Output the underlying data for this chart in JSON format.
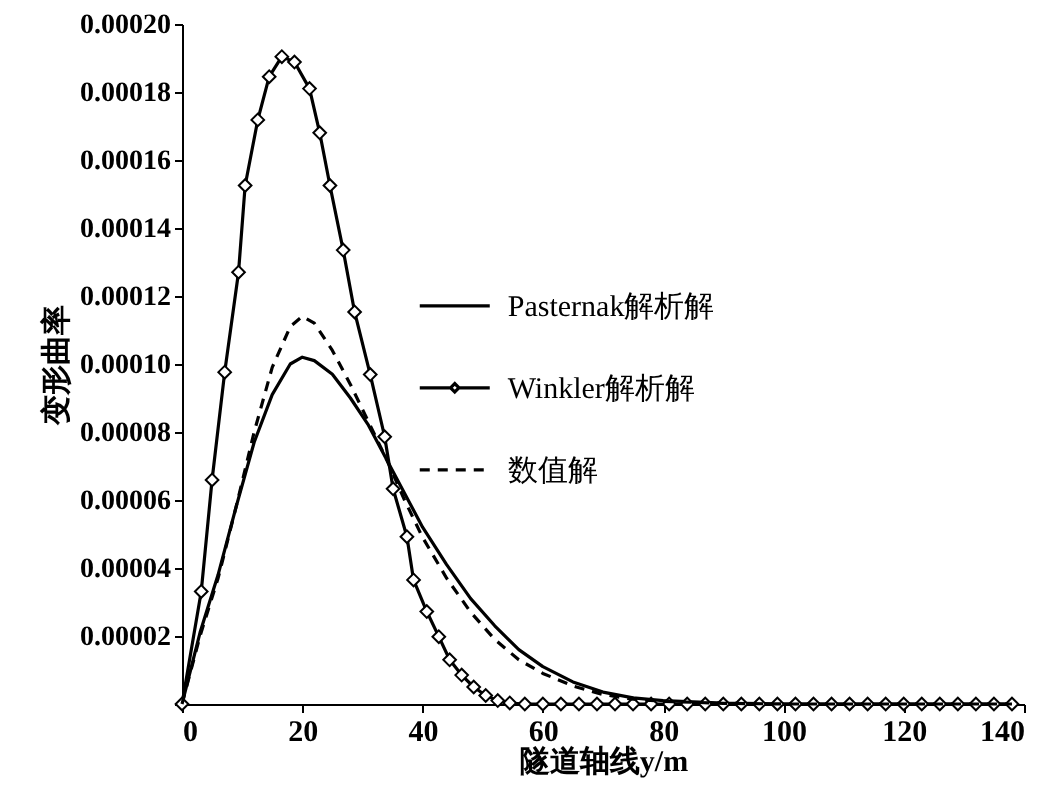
{
  "chart_data": {
    "type": "line",
    "xlabel": "隧道轴线y/m",
    "ylabel": "变形曲率",
    "xlim": [
      0,
      140
    ],
    "xticks": [
      0,
      20,
      40,
      60,
      80,
      100,
      120,
      140
    ],
    "ylim": [
      0,
      0.0002
    ],
    "yticks": [
      {
        "value": 0,
        "label": null
      },
      {
        "value": 2e-05,
        "label": "0.00002"
      },
      {
        "value": 4e-05,
        "label": "0.00004"
      },
      {
        "value": 6e-05,
        "label": "0.00006"
      },
      {
        "value": 8e-05,
        "label": "0.00008"
      },
      {
        "value": 0.0001,
        "label": "0.00010"
      },
      {
        "value": 0.00012,
        "label": "0.00012"
      },
      {
        "value": 0.00014,
        "label": "0.00014"
      },
      {
        "value": 0.00016,
        "label": "0.00016"
      },
      {
        "value": 0.00018,
        "label": "0.00018"
      },
      {
        "value": 0.0002,
        "label": "0.00020"
      }
    ],
    "grid": false,
    "legend": "right",
    "series": [
      {
        "name": "Pasternak解析解",
        "color": "#000000",
        "line_style": "solid",
        "marker": "none",
        "x": [
          0,
          3,
          6,
          9,
          12,
          15,
          18,
          20,
          22,
          25,
          28,
          31,
          34,
          37,
          40,
          44,
          48,
          52,
          56,
          60,
          65,
          70,
          75,
          80,
          90,
          100,
          120,
          138
        ],
        "values": [
          0,
          2.1e-05,
          3.8e-05,
          5.8e-05,
          7.7e-05,
          9.1e-05,
          0.0001,
          0.000102,
          0.000101,
          9.7e-05,
          9e-05,
          8.2e-05,
          7.2e-05,
          6.2e-05,
          5.2e-05,
          4.1e-05,
          3.1e-05,
          2.3e-05,
          1.6e-05,
          1.1e-05,
          6.5e-06,
          3.5e-06,
          1.8e-06,
          1e-06,
          3e-07,
          0,
          0,
          0
        ]
      },
      {
        "name": "Winkler解析解",
        "color": "#000000",
        "line_style": "solid",
        "marker": "diamond",
        "x": [
          0,
          3.2,
          5,
          7.1,
          9.4,
          10.5,
          12.6,
          14.5,
          16.6,
          18.7,
          21.2,
          22.9,
          24.6,
          26.8,
          28.7,
          31.3,
          33.7,
          35.1,
          37.4,
          38.5,
          40.7,
          42.7,
          44.5,
          46.5,
          48.5,
          50.5,
          52.5,
          54.5,
          57,
          60,
          63,
          66,
          69,
          72,
          75,
          78,
          81,
          84,
          87,
          90,
          93,
          96,
          99,
          102,
          105,
          108,
          111,
          114,
          117,
          120,
          123,
          126,
          129,
          132,
          135,
          138
        ],
        "values": [
          0,
          3.31e-05,
          6.59e-05,
          9.76e-05,
          0.000127,
          0.0001525,
          0.0001718,
          0.0001845,
          0.0001904,
          0.0001888,
          0.000181,
          0.000168,
          0.0001525,
          0.0001335,
          0.0001153,
          9.69e-05,
          7.86e-05,
          6.33e-05,
          4.92e-05,
          3.65e-05,
          2.72e-05,
          1.98e-05,
          1.3e-05,
          8.5e-06,
          5e-06,
          2.5e-06,
          1e-06,
          3e-07,
          0,
          0,
          0,
          0,
          0,
          0,
          0,
          0,
          0,
          0,
          0,
          0,
          0,
          0,
          0,
          0,
          0,
          0,
          0,
          0,
          0,
          0,
          0,
          0,
          0,
          0,
          0,
          0
        ]
      },
      {
        "name": "数值解",
        "color": "#000000",
        "line_style": "dashed",
        "marker": "none",
        "x": [
          0,
          3,
          6,
          9,
          12,
          15,
          18,
          20,
          22,
          25,
          28,
          31,
          34,
          37,
          40,
          44,
          48,
          52,
          56,
          60,
          65,
          70,
          75,
          80,
          90,
          100,
          120,
          138
        ],
        "values": [
          0,
          2e-05,
          3.7e-05,
          5.8e-05,
          8e-05,
          9.9e-05,
          0.000111,
          0.000114,
          0.000112,
          0.000104,
          9.4e-05,
          8.3e-05,
          7.2e-05,
          6e-05,
          4.9e-05,
          3.7e-05,
          2.7e-05,
          1.9e-05,
          1.3e-05,
          9e-06,
          5.3e-06,
          2.8e-06,
          1.4e-06,
          8e-07,
          2e-07,
          0,
          0,
          0
        ]
      }
    ]
  }
}
